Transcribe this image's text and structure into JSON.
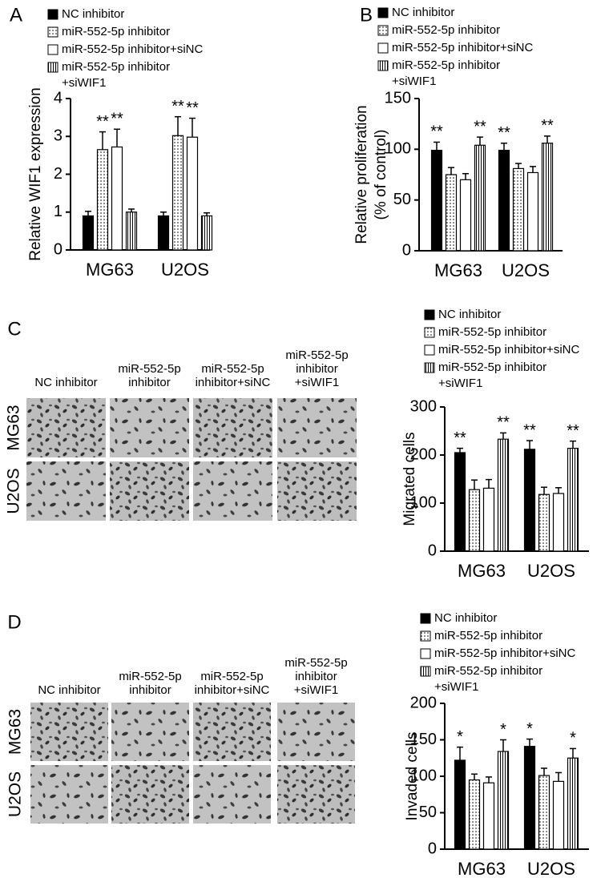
{
  "chart_data": [
    {
      "type": "bar",
      "panel": "A",
      "ylabel": [
        "Relative WIF1 expression"
      ],
      "categories": [
        "MG63",
        "U2OS"
      ],
      "ylim": [
        0,
        4
      ],
      "yticks": [
        0,
        1,
        2,
        3,
        4
      ],
      "series": [
        {
          "name": "NC inhibitor",
          "color": "#000000",
          "pattern": "solid",
          "values": [
            0.9,
            0.9
          ],
          "errors": [
            0.12,
            0.1
          ],
          "significance": [
            null,
            null
          ]
        },
        {
          "name": "miR-552-5p inhibitor",
          "color": "#ffffff",
          "pattern": "dots",
          "values": [
            2.65,
            3.02
          ],
          "errors": [
            0.47,
            0.5
          ],
          "significance": [
            "**",
            "**"
          ]
        },
        {
          "name": "miR-552-5p inhibitor+siNC",
          "color": "#ffffff",
          "pattern": "none",
          "values": [
            2.72,
            2.98
          ],
          "errors": [
            0.47,
            0.5
          ],
          "significance": [
            "**",
            "**"
          ]
        },
        {
          "name": "miR-552-5p inhibitor +siWIF1",
          "color": "#ffffff",
          "pattern": "vstripes",
          "values": [
            1.0,
            0.9
          ],
          "errors": [
            0.08,
            0.08
          ],
          "significance": [
            null,
            null
          ]
        }
      ]
    },
    {
      "type": "bar",
      "panel": "B",
      "ylabel": [
        "Relative proliferation",
        "(% of control)"
      ],
      "categories": [
        "MG63",
        "U2OS"
      ],
      "ylim": [
        0,
        150
      ],
      "yticks": [
        0,
        50,
        100,
        150
      ],
      "series": [
        {
          "name": "NC inhibitor",
          "color": "#000000",
          "pattern": "solid",
          "values": [
            99,
            99
          ],
          "errors": [
            8,
            7
          ],
          "significance": [
            "**",
            "**"
          ]
        },
        {
          "name": "miR-552-5p inhibitor",
          "color": "#ffffff",
          "pattern": "dots",
          "values": [
            75,
            81
          ],
          "errors": [
            7,
            5
          ],
          "significance": [
            null,
            null
          ]
        },
        {
          "name": "miR-552-5p inhibitor+siNC",
          "color": "#ffffff",
          "pattern": "none",
          "values": [
            70,
            77
          ],
          "errors": [
            6,
            6
          ],
          "significance": [
            null,
            null
          ]
        },
        {
          "name": "miR-552-5p inhibitor +siWIF1",
          "color": "#ffffff",
          "pattern": "vstripes",
          "values": [
            104,
            106
          ],
          "errors": [
            8,
            7
          ],
          "significance": [
            "**",
            "**"
          ]
        }
      ]
    },
    {
      "type": "bar",
      "panel": "C",
      "ylabel": [
        "Migrated cells"
      ],
      "categories": [
        "MG63",
        "U2OS"
      ],
      "ylim": [
        0,
        300
      ],
      "yticks": [
        0,
        100,
        200,
        300
      ],
      "series": [
        {
          "name": "NC inhibitor",
          "color": "#000000",
          "pattern": "solid",
          "values": [
            205,
            212
          ],
          "errors": [
            9,
            18
          ],
          "significance": [
            "**",
            "**"
          ]
        },
        {
          "name": "miR-552-5p inhibitor",
          "color": "#ffffff",
          "pattern": "dots",
          "values": [
            128,
            118
          ],
          "errors": [
            20,
            15
          ],
          "significance": [
            null,
            null
          ]
        },
        {
          "name": "miR-552-5p inhibitor+siNC",
          "color": "#ffffff",
          "pattern": "none",
          "values": [
            131,
            120
          ],
          "errors": [
            18,
            12
          ],
          "significance": [
            null,
            null
          ]
        },
        {
          "name": "miR-552-5p inhibitor +siWIF1",
          "color": "#ffffff",
          "pattern": "vstripes",
          "values": [
            233,
            214
          ],
          "errors": [
            13,
            15
          ],
          "significance": [
            "**",
            "**"
          ]
        }
      ]
    },
    {
      "type": "bar",
      "panel": "D",
      "ylabel": [
        "Invaded cells"
      ],
      "categories": [
        "MG63",
        "U2OS"
      ],
      "ylim": [
        0,
        200
      ],
      "yticks": [
        0,
        50,
        100,
        150,
        200
      ],
      "series": [
        {
          "name": "NC inhibitor",
          "color": "#000000",
          "pattern": "solid",
          "values": [
            122,
            141
          ],
          "errors": [
            18,
            10
          ],
          "significance": [
            "*",
            "*"
          ]
        },
        {
          "name": "miR-552-5p inhibitor",
          "color": "#ffffff",
          "pattern": "dots",
          "values": [
            95,
            101
          ],
          "errors": [
            8,
            10
          ],
          "significance": [
            null,
            null
          ]
        },
        {
          "name": "miR-552-5p inhibitor+siNC",
          "color": "#ffffff",
          "pattern": "none",
          "values": [
            91,
            93
          ],
          "errors": [
            8,
            12
          ],
          "significance": [
            null,
            null
          ]
        },
        {
          "name": "miR-552-5p inhibitor +siWIF1",
          "color": "#ffffff",
          "pattern": "vstripes",
          "values": [
            134,
            125
          ],
          "errors": [
            16,
            13
          ],
          "significance": [
            "*",
            "*"
          ]
        }
      ]
    }
  ],
  "image_panels": [
    {
      "column_labels": [
        [
          "NC inhibitor"
        ],
        [
          "miR-552-5p",
          "inhibitor"
        ],
        [
          "miR-552-5p",
          "inhibitor+siNC"
        ],
        [
          "miR-552-5p",
          "inhibitor",
          "+siWIF1"
        ]
      ],
      "row_labels": [
        "MG63",
        "U2OS"
      ]
    },
    {
      "column_labels": [
        [
          "NC inhibitor"
        ],
        [
          "miR-552-5p",
          "inhibitor"
        ],
        [
          "miR-552-5p",
          "inhibitor+siNC"
        ],
        [
          "miR-552-5p",
          "inhibitor",
          "+siWIF1"
        ]
      ],
      "row_labels": [
        "MG63",
        "U2OS"
      ]
    }
  ]
}
